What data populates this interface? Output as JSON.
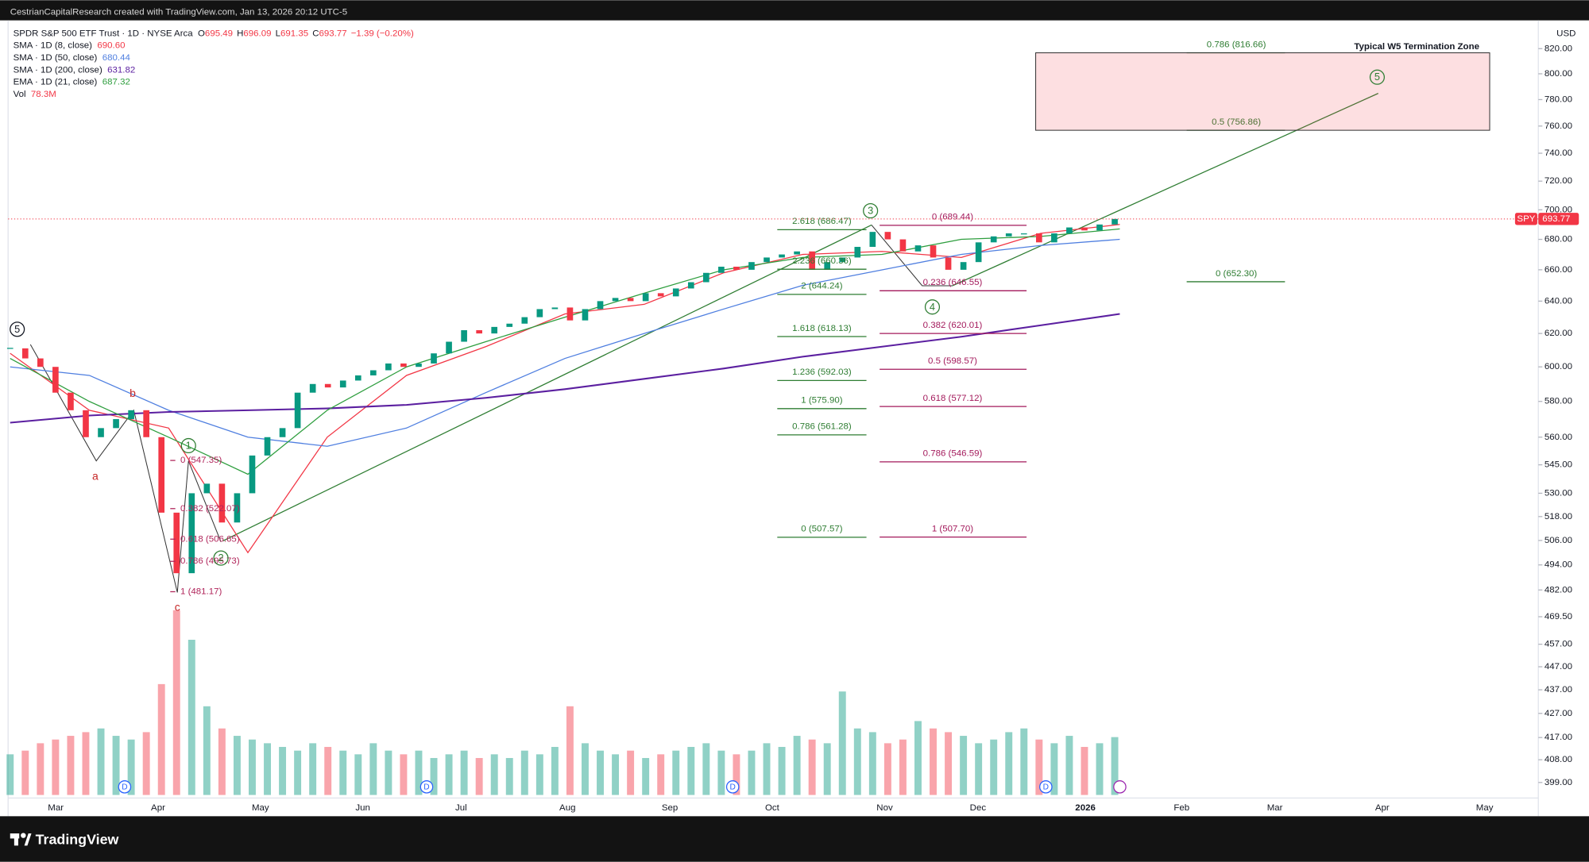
{
  "header": {
    "attribution": "CestrianCapitalResearch created with TradingView.com, Jan 13, 2026 20:12 UTC-5"
  },
  "legend": {
    "symbol": "SPDR S&P 500 ETF Trust · 1D · NYSE Arca",
    "ohlc": [
      {
        "key": "O",
        "value": 695.49
      },
      {
        "key": "H",
        "value": 696.09
      },
      {
        "key": "L",
        "value": 691.35
      },
      {
        "key": "C",
        "value": 693.77
      }
    ],
    "change": "−1.39 (−0.20%)",
    "indicators": [
      {
        "name": "SMA · 1D (8, close)",
        "value": "690.60",
        "color": "#f23645",
        "line": [
          608,
          575,
          565,
          500,
          560,
          595,
          612,
          632,
          638,
          658,
          670,
          672,
          668,
          684,
          690
        ]
      },
      {
        "name": "SMA · 1D (50, close)",
        "value": "680.44",
        "color": "#4f7fe0",
        "line": [
          600,
          595,
          575,
          560,
          555,
          565,
          585,
          605,
          620,
          635,
          650,
          660,
          670,
          676,
          680
        ]
      },
      {
        "name": "SMA · 1D (200, close)",
        "value": "631.82",
        "color": "#5b1fa0",
        "line": [
          568,
          572,
          574,
          575,
          576,
          578,
          582,
          587,
          593,
          599,
          606,
          612,
          618,
          625,
          632
        ]
      },
      {
        "name": "EMA · 1D (21, close)",
        "value": "687.32",
        "color": "#2e9e3e",
        "line": [
          605,
          580,
          560,
          540,
          575,
          600,
          615,
          630,
          645,
          660,
          668,
          670,
          680,
          682,
          687
        ]
      },
      {
        "name": "Vol",
        "value": "78.3M",
        "color": "#f23645"
      }
    ]
  },
  "chart_data": {
    "type": "candlestick",
    "log_scale": true,
    "currency": "USD",
    "closes_approx": [
      611,
      605,
      600,
      585,
      575,
      560,
      565,
      570,
      575,
      560,
      520,
      490,
      530,
      535,
      515,
      530,
      550,
      560,
      565,
      585,
      590,
      588,
      592,
      595,
      598,
      602,
      600,
      602,
      608,
      615,
      622,
      620,
      624,
      626,
      630,
      635,
      636,
      628,
      635,
      640,
      642,
      640,
      645,
      643,
      648,
      652,
      658,
      662,
      660,
      665,
      668,
      670,
      672,
      660,
      665,
      668,
      675,
      685,
      680,
      672,
      676,
      668,
      660,
      665,
      678,
      682,
      684,
      684,
      678,
      684,
      688,
      686,
      690,
      693.77
    ],
    "volume_approx": [
      55,
      60,
      70,
      75,
      80,
      85,
      90,
      80,
      75,
      85,
      150,
      250,
      210,
      120,
      90,
      80,
      75,
      70,
      65,
      60,
      70,
      65,
      60,
      55,
      70,
      60,
      55,
      60,
      50,
      55,
      60,
      50,
      55,
      50,
      60,
      55,
      65,
      120,
      70,
      60,
      55,
      60,
      50,
      55,
      60,
      65,
      70,
      60,
      55,
      60,
      70,
      65,
      80,
      75,
      70,
      140,
      90,
      85,
      70,
      75,
      100,
      90,
      85,
      80,
      70,
      75,
      85,
      90,
      75,
      70,
      80,
      65,
      70,
      78.3
    ],
    "ylim": [
      386,
      843
    ],
    "yticks": [
      {
        "value": 820,
        "label": "820.00"
      },
      {
        "value": 800,
        "label": "800.00"
      },
      {
        "value": 780,
        "label": "780.00"
      },
      {
        "value": 760,
        "label": "760.00"
      },
      {
        "value": 740,
        "label": "740.00"
      },
      {
        "value": 720,
        "label": "720.00"
      },
      {
        "value": 700,
        "label": "700.00"
      },
      {
        "value": 680,
        "label": "680.00"
      },
      {
        "value": 660,
        "label": "660.00"
      },
      {
        "value": 640,
        "label": "640.00"
      },
      {
        "value": 620,
        "label": "620.00"
      },
      {
        "value": 600,
        "label": "600.00"
      },
      {
        "value": 580,
        "label": "580.00"
      },
      {
        "value": 560,
        "label": "560.00"
      },
      {
        "value": 545,
        "label": "545.00"
      },
      {
        "value": 530,
        "label": "530.00"
      },
      {
        "value": 518,
        "label": "518.00"
      },
      {
        "value": 506,
        "label": "506.00"
      },
      {
        "value": 494,
        "label": "494.00"
      },
      {
        "value": 482,
        "label": "482.00"
      },
      {
        "value": 469.5,
        "label": "469.50"
      },
      {
        "value": 457,
        "label": "457.00"
      },
      {
        "value": 447,
        "label": "447.00"
      },
      {
        "value": 437,
        "label": "437.00"
      },
      {
        "value": 427,
        "label": "427.00"
      },
      {
        "value": 417,
        "label": "417.00"
      },
      {
        "value": 408,
        "label": "408.00"
      },
      {
        "value": 399,
        "label": "399.00"
      }
    ],
    "months": [
      "Mar",
      "Apr",
      "May",
      "Jun",
      "Jul",
      "Aug",
      "Sep",
      "Oct",
      "Nov",
      "Dec",
      "2026",
      "Feb",
      "Mar",
      "Apr",
      "May"
    ],
    "ticker": "SPY",
    "last_price": 693.77,
    "fibs": [
      {
        "color": "#b0245a",
        "levels": [
          {
            "label": "0 (547.35)",
            "value": 547.35
          },
          {
            "label": "0.382 (522.07)",
            "value": 522.07
          },
          {
            "label": "0.618 (506.65)",
            "value": 506.65
          },
          {
            "label": "0.786 (495.73)",
            "value": 495.73
          },
          {
            "label": "1 (481.17)",
            "value": 481.17
          }
        ]
      },
      {
        "color": "#2e7d32",
        "levels": [
          {
            "label": "2.618 (686.47)",
            "value": 686.47
          },
          {
            "label": "2.236 (660.36)",
            "value": 660.36
          },
          {
            "label": "2 (644.24)",
            "value": 644.24
          },
          {
            "label": "1.618 (618.13)",
            "value": 618.13
          },
          {
            "label": "1.236 (592.03)",
            "value": 592.03
          },
          {
            "label": "1 (575.90)",
            "value": 575.9
          },
          {
            "label": "0.786 (561.28)",
            "value": 561.28
          },
          {
            "label": "0 (507.57)",
            "value": 507.57
          }
        ]
      },
      {
        "color": "#a3195b",
        "levels": [
          {
            "label": "0 (689.44)",
            "value": 689.44
          },
          {
            "label": "0.236 (646.55)",
            "value": 646.55
          },
          {
            "label": "0.382 (620.01)",
            "value": 620.01
          },
          {
            "label": "0.5 (598.57)",
            "value": 598.57
          },
          {
            "label": "0.618 (577.12)",
            "value": 577.12
          },
          {
            "label": "0.786 (546.59)",
            "value": 546.59
          },
          {
            "label": "1 (507.70)",
            "value": 507.7
          }
        ]
      },
      {
        "color": "#2e7d32",
        "levels": [
          {
            "label": "0.786 (816.66)",
            "value": 816.66
          },
          {
            "label": "0.5 (756.86)",
            "value": 756.86
          },
          {
            "label": "0 (652.30)",
            "value": 652.3
          }
        ]
      }
    ],
    "zone_title": "Typical W5 Termination Zone",
    "wave_labels": [
      "5",
      "1",
      "2",
      "3",
      "4",
      "5"
    ],
    "abc_labels": [
      "a",
      "b",
      "c"
    ],
    "dividend_markers": [
      "D",
      "D",
      "D",
      "D"
    ]
  },
  "footer": {
    "brand": "TradingView"
  }
}
